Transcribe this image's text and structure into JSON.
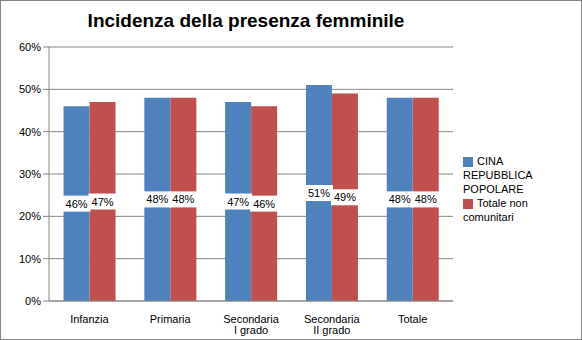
{
  "chart_data": {
    "type": "bar",
    "title": "Incidenza della presenza femminile",
    "categories": [
      "Infanzia",
      "Primaria",
      "Secondaria I grado",
      "Secondaria II grado",
      "Totale"
    ],
    "series": [
      {
        "name": "CINA REPUBBLICA POPOLARE",
        "color": "#4f81bd",
        "values": [
          46,
          48,
          47,
          51,
          48
        ],
        "value_labels": [
          "46%",
          "48%",
          "47%",
          "51%",
          "48%"
        ]
      },
      {
        "name": "Totale non comunitari",
        "color": "#c0504d",
        "values": [
          47,
          48,
          46,
          49,
          48
        ],
        "value_labels": [
          "47%",
          "48%",
          "46%",
          "49%",
          "48%"
        ]
      }
    ],
    "ylim": [
      0,
      60
    ],
    "yticks": [
      {
        "value": 0,
        "label": "0%"
      },
      {
        "value": 10,
        "label": "10%"
      },
      {
        "value": 20,
        "label": "20%"
      },
      {
        "value": 30,
        "label": "30%"
      },
      {
        "value": 40,
        "label": "40%"
      },
      {
        "value": 50,
        "label": "50%"
      },
      {
        "value": 60,
        "label": "60%"
      }
    ],
    "grid": true,
    "legend": "right",
    "data_labels": true
  }
}
